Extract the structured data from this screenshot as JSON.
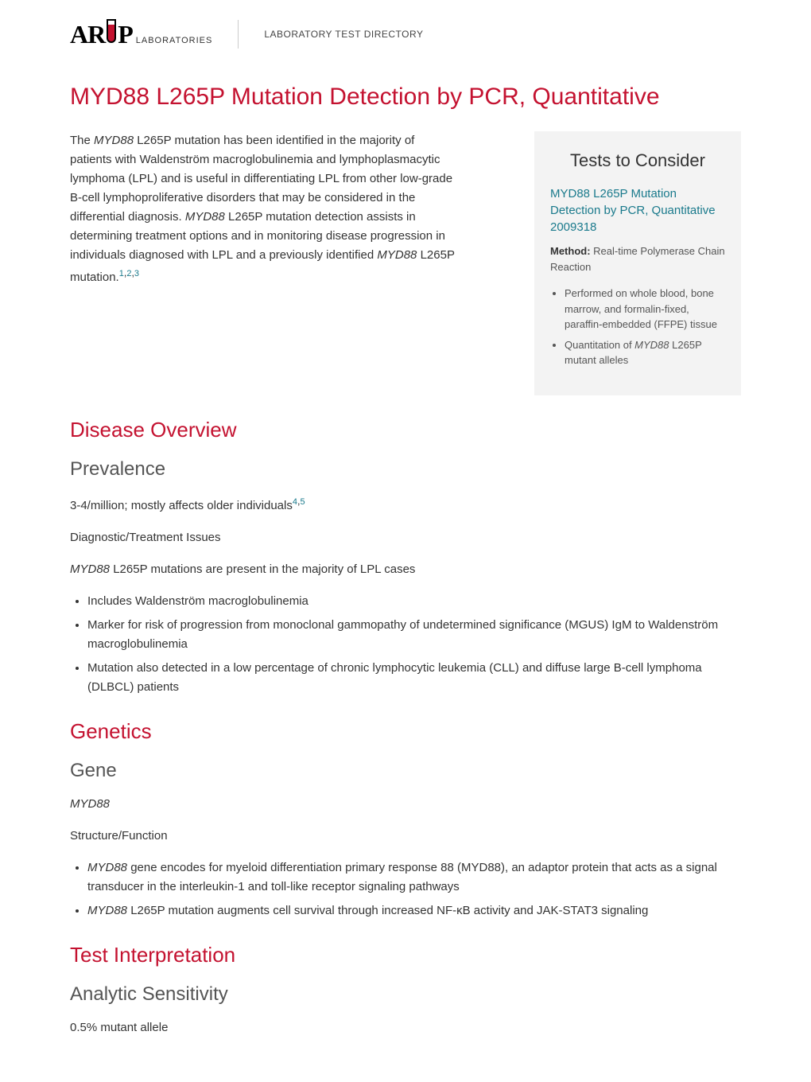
{
  "header": {
    "logo_main_before": "AR",
    "logo_main_after": "P",
    "logo_sub": "LABORATORIES",
    "label": "LABORATORY TEST DIRECTORY"
  },
  "page_title": "MYD88 L265P Mutation Detection by PCR, Quantitative",
  "intro": {
    "pre": "The ",
    "gene1": "MYD88",
    "mid1": " L265P mutation has been identified in the majority of patients with Waldenström macroglobulinemia and lymphoplasmacytic lymphoma (LPL) and is useful in differentiating LPL from other low-grade B-cell lymphoproliferative disorders that may be considered in the differential diagnosis. ",
    "gene2": "MYD88",
    "mid2": " L265P mutation detection assists in determining treatment options and in monitoring disease progression in individuals diagnosed with LPL and a previously identified ",
    "gene3": "MYD88",
    "post": " L265P mutation.",
    "refs": [
      "1",
      "2",
      "3"
    ]
  },
  "sections": {
    "disease_overview": {
      "title": "Disease Overview",
      "prevalence": {
        "title": "Prevalence",
        "text": "3-4/million; mostly affects older individuals",
        "refs": [
          "4",
          "5"
        ]
      },
      "diag_title": "Diagnostic/Treatment Issues",
      "diag_lead_gene": "MYD88",
      "diag_lead_rest": " L265P mutations are present in the majority of LPL cases",
      "bullets": [
        "Includes Waldenström macroglobulinemia",
        "Marker for risk of progression from monoclonal gammopathy of undetermined significance (MGUS) IgM to Waldenström macroglobulinemia",
        "Mutation also detected in a low percentage of chronic lymphocytic leukemia (CLL) and diffuse large B-cell lymphoma (DLBCL) patients"
      ]
    },
    "genetics": {
      "title": "Genetics",
      "gene_title": "Gene",
      "gene_name": "MYD88",
      "sf_title": "Structure/Function",
      "sf_b1_gene": "MYD88",
      "sf_b1_rest": " gene encodes for myeloid differentiation primary response 88 (MYD88), an adaptor protein that acts as a signal transducer in the interleukin-1 and toll-like receptor signaling pathways",
      "sf_b2_gene": "MYD88",
      "sf_b2_rest": " L265P mutation augments cell survival through increased NF-κB activity and JAK-STAT3 signaling"
    },
    "test_interp": {
      "title": "Test Interpretation",
      "as_title": "Analytic Sensitivity",
      "as_text": "0.5% mutant allele"
    }
  },
  "sidebar": {
    "title": "Tests to Consider",
    "link_text": "MYD88 L265P Mutation Detection by PCR, Quantitative 2009318",
    "method_label": "Method:",
    "method_value": " Real-time Polymerase Chain Reaction",
    "b1": "Performed on whole blood, bone marrow, and formalin-fixed, paraffin-embedded (FFPE) tissue",
    "b2_pre": "Quantitation of ",
    "b2_gene": "MYD88",
    "b2_post": " L265P mutant alleles"
  },
  "colors": {
    "brand_red": "#c41230",
    "link_teal": "#1a7a8c",
    "sidebar_bg": "#f3f3f3",
    "text": "#333333"
  }
}
